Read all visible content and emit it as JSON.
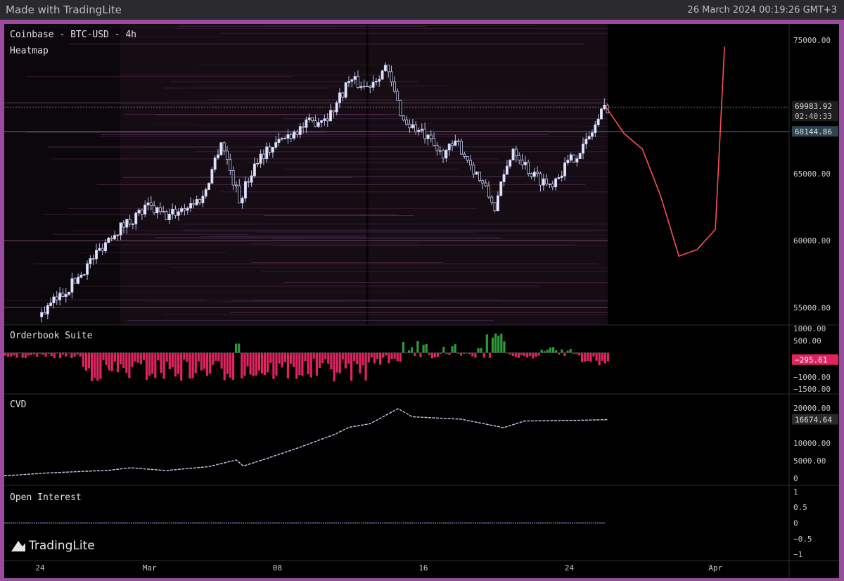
{
  "header": {
    "made_with": "Made with TradingLite",
    "datetime": "26 March 2024 00:19:26 GMT+3"
  },
  "branding": {
    "logo_text": "TradingLite"
  },
  "colors": {
    "frame": "#9b4aa0",
    "background": "#000000",
    "candle_up": "#c8cdf0",
    "candle_down": "#c8cdf0",
    "forecast": "#ff4d57",
    "orderbook_positive": "#2f9a3a",
    "orderbook_negative": "#e0245e",
    "cvd_line": "#c8cdf0"
  },
  "chart_data": [
    {
      "pane": "main",
      "type": "candlestick",
      "title": "Coinbase - BTC-USD - 4h",
      "overlay_label": "Heatmap",
      "x_ticks": [
        "24",
        "Mar",
        "08",
        "16",
        "24",
        "Apr"
      ],
      "y_ticks": [
        55000,
        60000,
        65000,
        70000,
        75000
      ],
      "y_tick_labels": [
        "55000.00",
        "60000.00",
        "65000.00",
        "",
        "75000.00"
      ],
      "ylim": [
        53700,
        76200
      ],
      "last_price_label": "69983.92",
      "countdown_label": "02:40:33",
      "crosshair_price_label": "68144.86",
      "last_price": 69983.92,
      "crosshair_price": 68144.86,
      "price_path": [
        [
          "2024-02-24",
          54300
        ],
        [
          "2024-02-26",
          57000
        ],
        [
          "2024-02-28",
          60500
        ],
        [
          "2024-03-01",
          62500
        ],
        [
          "2024-03-02",
          61800
        ],
        [
          "2024-03-04",
          63200
        ],
        [
          "2024-03-05",
          67500
        ],
        [
          "2024-03-06",
          63000
        ],
        [
          "2024-03-07",
          66200
        ],
        [
          "2024-03-09",
          68200
        ],
        [
          "2024-03-11",
          69500
        ],
        [
          "2024-03-12",
          72000
        ],
        [
          "2024-03-13",
          71500
        ],
        [
          "2024-03-14",
          73000
        ],
        [
          "2024-03-15",
          69000
        ],
        [
          "2024-03-16",
          68000
        ],
        [
          "2024-03-17",
          66500
        ],
        [
          "2024-03-18",
          67200
        ],
        [
          "2024-03-19",
          65000
        ],
        [
          "2024-03-20",
          62500
        ],
        [
          "2024-03-21",
          67000
        ],
        [
          "2024-03-22",
          65000
        ],
        [
          "2024-03-23",
          64200
        ],
        [
          "2024-03-24",
          65800
        ],
        [
          "2024-03-25",
          67300
        ],
        [
          "2024-03-26",
          69983.92
        ]
      ],
      "forecast_path": [
        [
          "2024-03-26",
          70000
        ],
        [
          "2024-03-27",
          68000
        ],
        [
          "2024-03-28",
          67000
        ],
        [
          "2024-03-29",
          63500
        ],
        [
          "2024-03-30",
          59000
        ],
        [
          "2024-03-31",
          59500
        ],
        [
          "2024-04-01",
          61000
        ],
        [
          "2024-04-01T12",
          74500
        ]
      ]
    },
    {
      "pane": "orderbook",
      "type": "bar",
      "title": "Orderbook Suite",
      "y_ticks": [
        1000,
        500,
        -1000,
        -1500
      ],
      "y_tick_labels": [
        "1000.00",
        "500.00",
        "−1000.00",
        "−1500.00"
      ],
      "ylim": [
        -1700,
        1150
      ],
      "last_value_label": "−295.61",
      "last_value": -295.61
    },
    {
      "pane": "cvd",
      "type": "line",
      "title": "CVD",
      "y_ticks": [
        0,
        5000,
        10000,
        15000,
        20000
      ],
      "y_tick_labels": [
        "0",
        "5000.00",
        "10000.00",
        "",
        "20000.00"
      ],
      "ylim": [
        -2000,
        24000
      ],
      "last_value_label": "16674.64",
      "last_value": 16674.64
    },
    {
      "pane": "open_interest",
      "type": "line",
      "title": "Open Interest",
      "y_ticks": [
        1,
        0.5,
        0,
        -0.5,
        -1
      ],
      "y_tick_labels": [
        "1",
        "0.5",
        "0",
        "−0.5",
        "−1"
      ],
      "ylim": [
        -1.2,
        1.2
      ],
      "value": 0
    }
  ]
}
